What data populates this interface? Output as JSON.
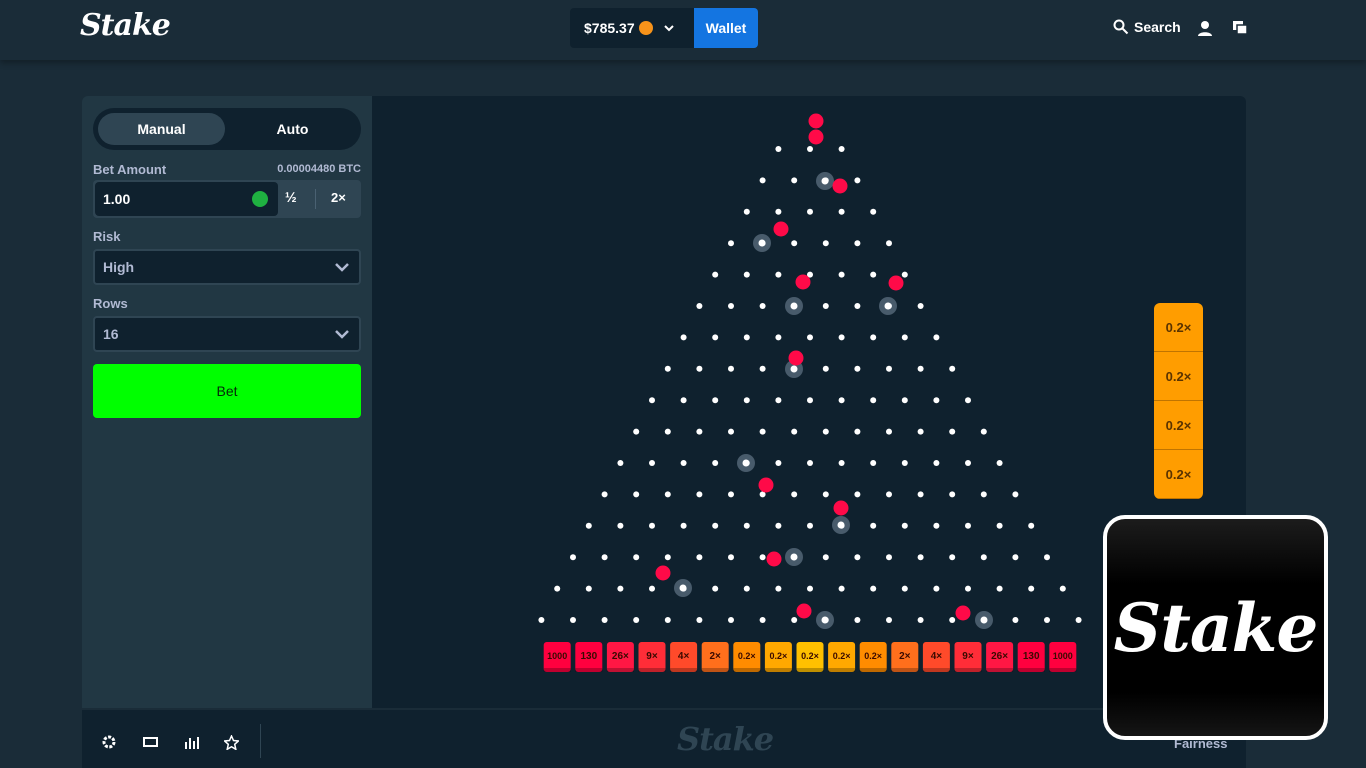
{
  "header": {
    "logo": "Stake",
    "balance": "$785.37",
    "wallet": "Wallet",
    "search": "Search"
  },
  "sidebar": {
    "tabs": [
      "Manual",
      "Auto"
    ],
    "bet_amount_label": "Bet Amount",
    "bet_amount_btc": "0.00004480 BTC",
    "bet_amount": "1.00",
    "half": "½",
    "double": "2×",
    "risk_label": "Risk",
    "risk": "High",
    "rows_label": "Rows",
    "rows": "16",
    "bet_button": "Bet"
  },
  "board": {
    "multipliers": [
      "1000",
      "130",
      "26×",
      "9×",
      "4×",
      "2×",
      "0.2×",
      "0.2×",
      "0.2×",
      "0.2×",
      "0.2×",
      "2×",
      "4×",
      "9×",
      "26×",
      "130",
      "1000"
    ],
    "recent": [
      "0.2×",
      "0.2×",
      "0.2×",
      "0.2×"
    ]
  },
  "footer": {
    "logo": "Stake",
    "fairness": "Fairness"
  },
  "overlay": {
    "logo": "Stake"
  }
}
